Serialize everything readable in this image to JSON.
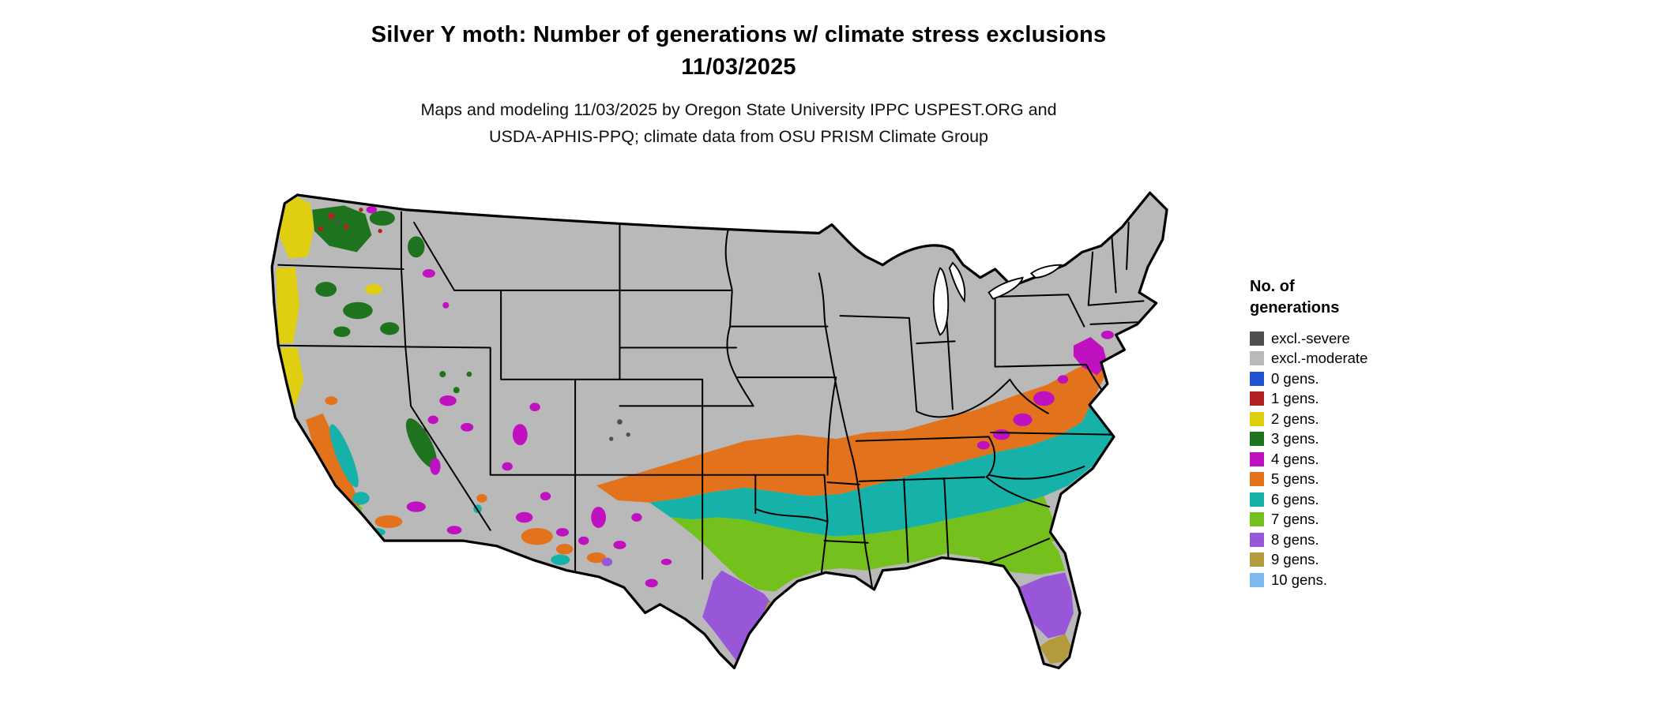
{
  "header": {
    "title_line1": "Silver Y moth: Number of generations w/ climate stress exclusions",
    "title_line2": "11/03/2025",
    "subtitle_line1": "Maps and modeling 11/03/2025 by Oregon State University IPPC USPEST.ORG and",
    "subtitle_line2": "USDA-APHIS-PPQ; climate data from OSU PRISM Climate Group"
  },
  "legend": {
    "title_line1": "No. of",
    "title_line2": "generations",
    "items": [
      {
        "key": "excl-severe",
        "label": "excl.-severe",
        "color": "#4f4f4f"
      },
      {
        "key": "excl-moderate",
        "label": "excl.-moderate",
        "color": "#b9b9b9"
      },
      {
        "key": "gens-0",
        "label": "0 gens.",
        "color": "#2353d4"
      },
      {
        "key": "gens-1",
        "label": "1 gens.",
        "color": "#b22222"
      },
      {
        "key": "gens-2",
        "label": "2 gens.",
        "color": "#e0ce10"
      },
      {
        "key": "gens-3",
        "label": "3 gens.",
        "color": "#1e741e"
      },
      {
        "key": "gens-4",
        "label": "4 gens.",
        "color": "#c011c0"
      },
      {
        "key": "gens-5",
        "label": "5 gens.",
        "color": "#e2731c"
      },
      {
        "key": "gens-6",
        "label": "6 gens.",
        "color": "#16b2aa"
      },
      {
        "key": "gens-7",
        "label": "7 gens.",
        "color": "#74c11e"
      },
      {
        "key": "gens-8",
        "label": "8 gens.",
        "color": "#9757d8"
      },
      {
        "key": "gens-9",
        "label": "9 gens.",
        "color": "#b29a3d"
      },
      {
        "key": "gens-10",
        "label": "10 gens.",
        "color": "#7fb9ef"
      }
    ]
  },
  "map": {
    "outline_color": "#000000",
    "water_color": "#ffffff",
    "background_color": "#ffffff"
  }
}
